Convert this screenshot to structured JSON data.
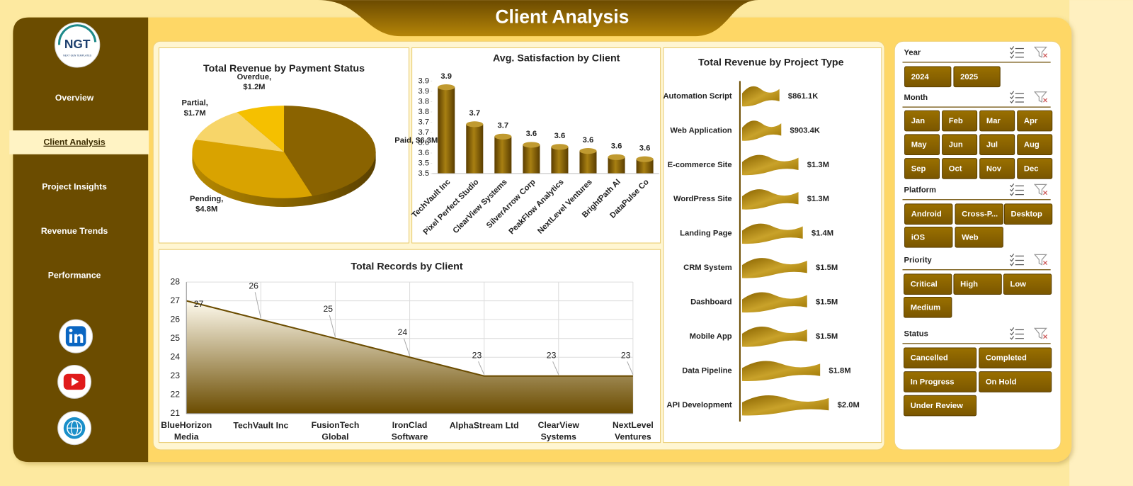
{
  "header": {
    "title": "Client Analysis"
  },
  "sidebar": {
    "logo": "NGT",
    "logo_subtitle": "NEXT GEN TEMPLATES",
    "nav": [
      "Overview",
      "Client Analysis",
      "Project Insights",
      "Revenue Trends",
      "Performance"
    ],
    "active": 1
  },
  "chart_data": [
    {
      "type": "pie",
      "title": "Total Revenue by Payment Status",
      "values": [
        6300000,
        4800000,
        1700000,
        1200000
      ],
      "value_labels": [
        "Paid, $6.3M",
        "Pending, $4.8M",
        "Partial, $1.7M",
        "Overdue, $1.2M"
      ],
      "colors": [
        "#8a6300",
        "#d9a300",
        "#f7d569",
        "#f5c000"
      ]
    },
    {
      "type": "bar",
      "title": "Avg. Satisfaction by Client",
      "categories": [
        "TechVault Inc",
        "Pixel Perfect Studio",
        "ClearView Systems",
        "SilverArrow Corp",
        "PeakFlow Analytics",
        "NextLevel Ventures",
        "BrightPath AI",
        "DataPulse Co"
      ],
      "values": [
        3.92,
        3.74,
        3.68,
        3.64,
        3.63,
        3.61,
        3.58,
        3.57
      ],
      "value_labels": [
        "3.9",
        "3.7",
        "3.7",
        "3.6",
        "3.6",
        "3.6",
        "3.6",
        "3.6"
      ],
      "ylim": [
        3.5,
        3.95
      ],
      "yticks": [
        3.5,
        {
          "value": 3.55,
          "label": "3.5"
        },
        3.6,
        {
          "value": 3.65,
          "label": "3.6"
        },
        3.7,
        {
          "value": 3.75,
          "label": "3.7"
        },
        3.8,
        {
          "value": 3.85,
          "label": "3.8"
        },
        3.9,
        {
          "value": 3.95,
          "label": "3.9"
        }
      ],
      "color": "#8a6300"
    },
    {
      "type": "hbar",
      "title": "Total Revenue  by Project Type",
      "categories": [
        "Automation Script",
        "Web Application",
        "E-commerce Site",
        "WordPress Site",
        "Landing Page",
        "CRM System",
        "Dashboard",
        "Mobile App",
        "Data Pipeline",
        "API Development"
      ],
      "values": [
        861100,
        903400,
        1300000,
        1300000,
        1400000,
        1500000,
        1500000,
        1500000,
        1800000,
        2000000
      ],
      "value_labels": [
        "$861.1K",
        "$903.4K",
        "$1.3M",
        "$1.3M",
        "$1.4M",
        "$1.5M",
        "$1.5M",
        "$1.5M",
        "$1.8M",
        "$2.0M"
      ],
      "color": "#b38a10"
    },
    {
      "type": "area",
      "title": "Total Records by Client",
      "categories": [
        "BlueHorizon Media",
        "TechVault Inc",
        "FusionTech Global",
        "IronClad Software",
        "AlphaStream Ltd",
        "ClearView Systems",
        "NextLevel Ventures"
      ],
      "values": [
        27,
        26,
        25,
        24,
        23,
        23,
        23
      ],
      "ylim": [
        21,
        28
      ],
      "yticks": [
        21,
        22,
        23,
        24,
        25,
        26,
        27,
        28
      ],
      "grid": true,
      "color": "#6b4c00"
    }
  ],
  "slicers": [
    {
      "title": "Year",
      "options": [
        "2024",
        "2025"
      ]
    },
    {
      "title": "Month",
      "options": [
        "Jan",
        "Feb",
        "Mar",
        "Apr",
        "May",
        "Jun",
        "Jul",
        "Aug",
        "Sep",
        "Oct",
        "Nov",
        "Dec"
      ]
    },
    {
      "title": "Platform",
      "options": [
        "Android",
        "Cross-P...",
        "Desktop",
        "iOS",
        "Web"
      ]
    },
    {
      "title": "Priority",
      "options": [
        "Critical",
        "High",
        "Low",
        "Medium"
      ]
    },
    {
      "title": "Status",
      "options": [
        "Cancelled",
        "Completed",
        "In Progress",
        "On Hold",
        "Under Review"
      ]
    }
  ]
}
